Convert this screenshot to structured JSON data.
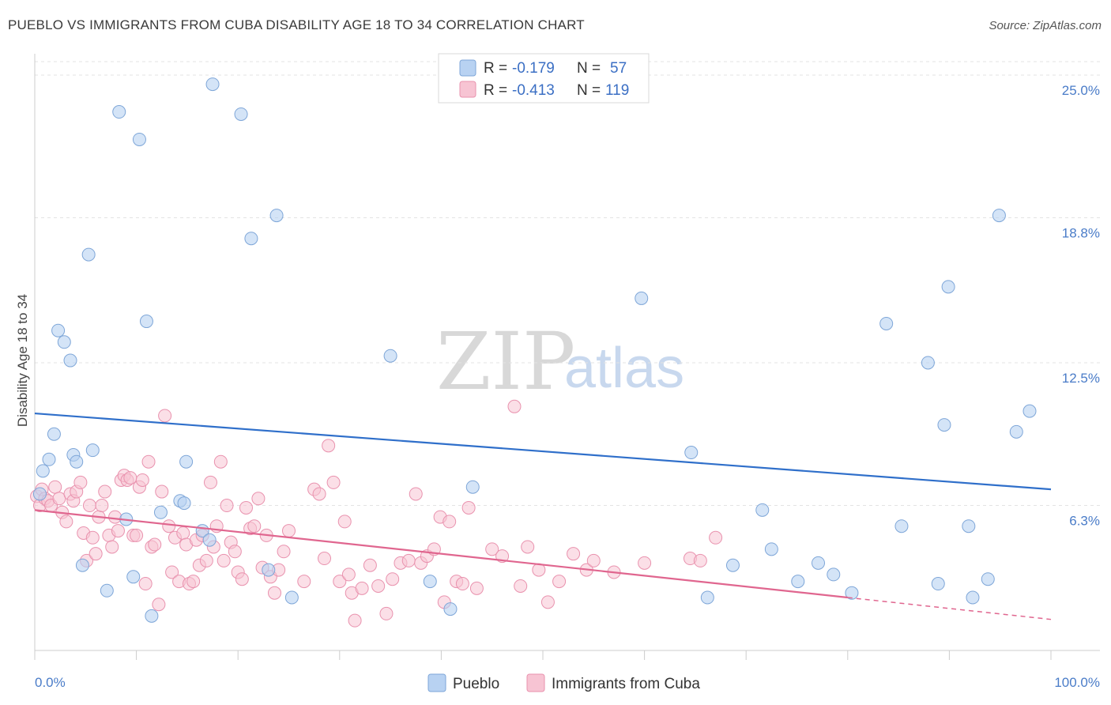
{
  "title": "PUEBLO VS IMMIGRANTS FROM CUBA DISABILITY AGE 18 TO 34 CORRELATION CHART",
  "source": "Source: ZipAtlas.com",
  "watermark": {
    "zip": "ZIP",
    "atlas": "atlas"
  },
  "colors": {
    "pueblo_fill": "#b8d2f2",
    "pueblo_stroke": "#7ea6d8",
    "pueblo_line": "#2f6fca",
    "cuba_fill": "#f7c4d3",
    "cuba_stroke": "#e992ae",
    "cuba_line": "#e0668f"
  },
  "legend_top": {
    "rows": [
      {
        "r_label": "R = ",
        "r_value": "-0.179",
        "n_label": "N = ",
        "n_value": "57"
      },
      {
        "r_label": "R = ",
        "r_value": "-0.413",
        "n_label": "N = ",
        "n_value": "119"
      }
    ]
  },
  "chart_data": {
    "type": "scatter",
    "title": "PUEBLO VS IMMIGRANTS FROM CUBA DISABILITY AGE 18 TO 34 CORRELATION CHART",
    "xlabel": "",
    "ylabel": "Disability Age 18 to 34",
    "xlim": [
      0,
      100
    ],
    "ylim": [
      0,
      26.2
    ],
    "x_tick_labels": [
      "0.0%",
      "100.0%"
    ],
    "y_ticks": [
      6.3,
      12.5,
      18.8,
      25.0
    ],
    "y_tick_labels": [
      "6.3%",
      "12.5%",
      "18.8%",
      "25.0%"
    ],
    "grid": "horizontal dashed",
    "legend_placement": "bottom",
    "series": [
      {
        "name": "Pueblo",
        "r": -0.179,
        "n": 57,
        "trend": {
          "x": [
            0,
            100
          ],
          "y": [
            10.3,
            7.0
          ]
        },
        "points": [
          [
            0.5,
            6.8
          ],
          [
            0.8,
            7.8
          ],
          [
            1.4,
            8.3
          ],
          [
            1.9,
            9.4
          ],
          [
            2.3,
            13.9
          ],
          [
            2.9,
            13.4
          ],
          [
            3.5,
            12.6
          ],
          [
            3.8,
            8.5
          ],
          [
            4.1,
            8.2
          ],
          [
            4.7,
            3.7
          ],
          [
            5.3,
            17.2
          ],
          [
            5.7,
            8.7
          ],
          [
            7.1,
            2.6
          ],
          [
            8.3,
            23.4
          ],
          [
            9.0,
            5.7
          ],
          [
            9.7,
            3.2
          ],
          [
            10.3,
            22.2
          ],
          [
            11.0,
            14.3
          ],
          [
            11.5,
            1.5
          ],
          [
            12.4,
            6.0
          ],
          [
            14.3,
            6.5
          ],
          [
            14.7,
            6.4
          ],
          [
            14.9,
            8.2
          ],
          [
            16.5,
            5.2
          ],
          [
            17.2,
            4.8
          ],
          [
            17.5,
            24.6
          ],
          [
            20.3,
            23.3
          ],
          [
            21.3,
            17.9
          ],
          [
            23.0,
            3.5
          ],
          [
            23.8,
            18.9
          ],
          [
            25.3,
            2.3
          ],
          [
            35.0,
            12.8
          ],
          [
            38.9,
            3.0
          ],
          [
            40.9,
            1.8
          ],
          [
            43.1,
            7.1
          ],
          [
            59.7,
            15.3
          ],
          [
            64.6,
            8.6
          ],
          [
            66.2,
            2.3
          ],
          [
            68.7,
            3.7
          ],
          [
            71.6,
            6.1
          ],
          [
            72.5,
            4.4
          ],
          [
            75.1,
            3.0
          ],
          [
            77.1,
            3.8
          ],
          [
            78.6,
            3.3
          ],
          [
            80.4,
            2.5
          ],
          [
            83.8,
            14.2
          ],
          [
            85.3,
            5.4
          ],
          [
            87.9,
            12.5
          ],
          [
            88.9,
            2.9
          ],
          [
            89.5,
            9.8
          ],
          [
            89.9,
            15.8
          ],
          [
            91.9,
            5.4
          ],
          [
            92.3,
            2.3
          ],
          [
            93.8,
            3.1
          ],
          [
            94.9,
            18.9
          ],
          [
            96.6,
            9.5
          ],
          [
            97.9,
            10.4
          ]
        ]
      },
      {
        "name": "Immigrants from Cuba",
        "r": -0.413,
        "n": 119,
        "trend": {
          "x": [
            0,
            80.0
          ],
          "y": [
            6.1,
            2.3
          ]
        },
        "trend_dashed": {
          "x": [
            80.0,
            100
          ],
          "y": [
            2.3,
            1.35
          ]
        },
        "points": [
          [
            0.2,
            6.7
          ],
          [
            0.5,
            6.3
          ],
          [
            0.7,
            7.0
          ],
          [
            1.0,
            6.6
          ],
          [
            1.3,
            6.5
          ],
          [
            1.6,
            6.3
          ],
          [
            2.0,
            7.1
          ],
          [
            2.4,
            6.6
          ],
          [
            2.7,
            6.0
          ],
          [
            3.1,
            5.6
          ],
          [
            3.5,
            6.8
          ],
          [
            3.8,
            6.5
          ],
          [
            4.1,
            6.9
          ],
          [
            4.5,
            7.3
          ],
          [
            4.8,
            5.1
          ],
          [
            5.1,
            3.9
          ],
          [
            5.4,
            6.3
          ],
          [
            5.7,
            4.9
          ],
          [
            6.0,
            4.2
          ],
          [
            6.3,
            5.8
          ],
          [
            6.6,
            6.3
          ],
          [
            6.9,
            6.9
          ],
          [
            7.3,
            5.0
          ],
          [
            7.6,
            4.5
          ],
          [
            7.9,
            5.8
          ],
          [
            8.2,
            5.2
          ],
          [
            8.5,
            7.4
          ],
          [
            8.8,
            7.6
          ],
          [
            9.1,
            7.4
          ],
          [
            9.4,
            7.5
          ],
          [
            9.7,
            5.0
          ],
          [
            10.0,
            5.0
          ],
          [
            10.3,
            7.1
          ],
          [
            10.6,
            7.4
          ],
          [
            10.9,
            2.9
          ],
          [
            11.2,
            8.2
          ],
          [
            11.5,
            4.5
          ],
          [
            11.8,
            4.6
          ],
          [
            12.2,
            2.0
          ],
          [
            12.5,
            6.9
          ],
          [
            12.8,
            10.2
          ],
          [
            13.2,
            5.4
          ],
          [
            13.5,
            3.4
          ],
          [
            13.8,
            4.9
          ],
          [
            14.2,
            3.0
          ],
          [
            14.6,
            5.1
          ],
          [
            14.9,
            4.6
          ],
          [
            15.2,
            2.9
          ],
          [
            15.6,
            3.0
          ],
          [
            15.9,
            4.8
          ],
          [
            16.2,
            3.7
          ],
          [
            16.5,
            5.0
          ],
          [
            16.9,
            3.9
          ],
          [
            17.3,
            7.3
          ],
          [
            17.6,
            4.5
          ],
          [
            17.9,
            5.4
          ],
          [
            18.3,
            8.2
          ],
          [
            18.6,
            3.9
          ],
          [
            18.9,
            6.3
          ],
          [
            19.3,
            4.7
          ],
          [
            19.7,
            4.3
          ],
          [
            20.0,
            3.4
          ],
          [
            20.4,
            3.1
          ],
          [
            20.8,
            6.2
          ],
          [
            21.2,
            5.3
          ],
          [
            21.6,
            5.4
          ],
          [
            22.0,
            6.6
          ],
          [
            22.4,
            3.6
          ],
          [
            22.8,
            5.0
          ],
          [
            23.2,
            3.2
          ],
          [
            23.6,
            2.5
          ],
          [
            24.0,
            3.5
          ],
          [
            24.5,
            4.3
          ],
          [
            25.0,
            5.2
          ],
          [
            26.5,
            3.0
          ],
          [
            27.5,
            7.0
          ],
          [
            28.0,
            6.8
          ],
          [
            28.5,
            4.0
          ],
          [
            28.9,
            8.9
          ],
          [
            29.4,
            7.3
          ],
          [
            30.0,
            3.0
          ],
          [
            30.5,
            5.6
          ],
          [
            30.9,
            3.3
          ],
          [
            31.2,
            2.5
          ],
          [
            31.5,
            1.3
          ],
          [
            32.2,
            2.7
          ],
          [
            33.0,
            3.7
          ],
          [
            33.8,
            2.8
          ],
          [
            34.6,
            1.6
          ],
          [
            35.2,
            3.1
          ],
          [
            36.0,
            3.8
          ],
          [
            36.8,
            3.9
          ],
          [
            37.5,
            6.8
          ],
          [
            38.0,
            3.8
          ],
          [
            38.6,
            4.1
          ],
          [
            39.3,
            4.4
          ],
          [
            39.9,
            5.8
          ],
          [
            40.3,
            2.1
          ],
          [
            40.8,
            5.6
          ],
          [
            41.5,
            3.0
          ],
          [
            42.1,
            2.9
          ],
          [
            42.7,
            6.2
          ],
          [
            43.5,
            2.7
          ],
          [
            45.0,
            4.4
          ],
          [
            46.0,
            4.1
          ],
          [
            47.2,
            10.6
          ],
          [
            47.8,
            2.8
          ],
          [
            48.5,
            4.5
          ],
          [
            49.6,
            3.5
          ],
          [
            50.5,
            2.1
          ],
          [
            51.6,
            3.0
          ],
          [
            53.0,
            4.2
          ],
          [
            54.3,
            3.5
          ],
          [
            55.0,
            3.9
          ],
          [
            57.0,
            3.4
          ],
          [
            60.0,
            3.8
          ],
          [
            64.5,
            4.0
          ],
          [
            65.5,
            3.9
          ],
          [
            67.0,
            4.9
          ]
        ]
      }
    ]
  },
  "legend_bottom": [
    {
      "label": "Pueblo"
    },
    {
      "label": "Immigrants from Cuba"
    }
  ]
}
